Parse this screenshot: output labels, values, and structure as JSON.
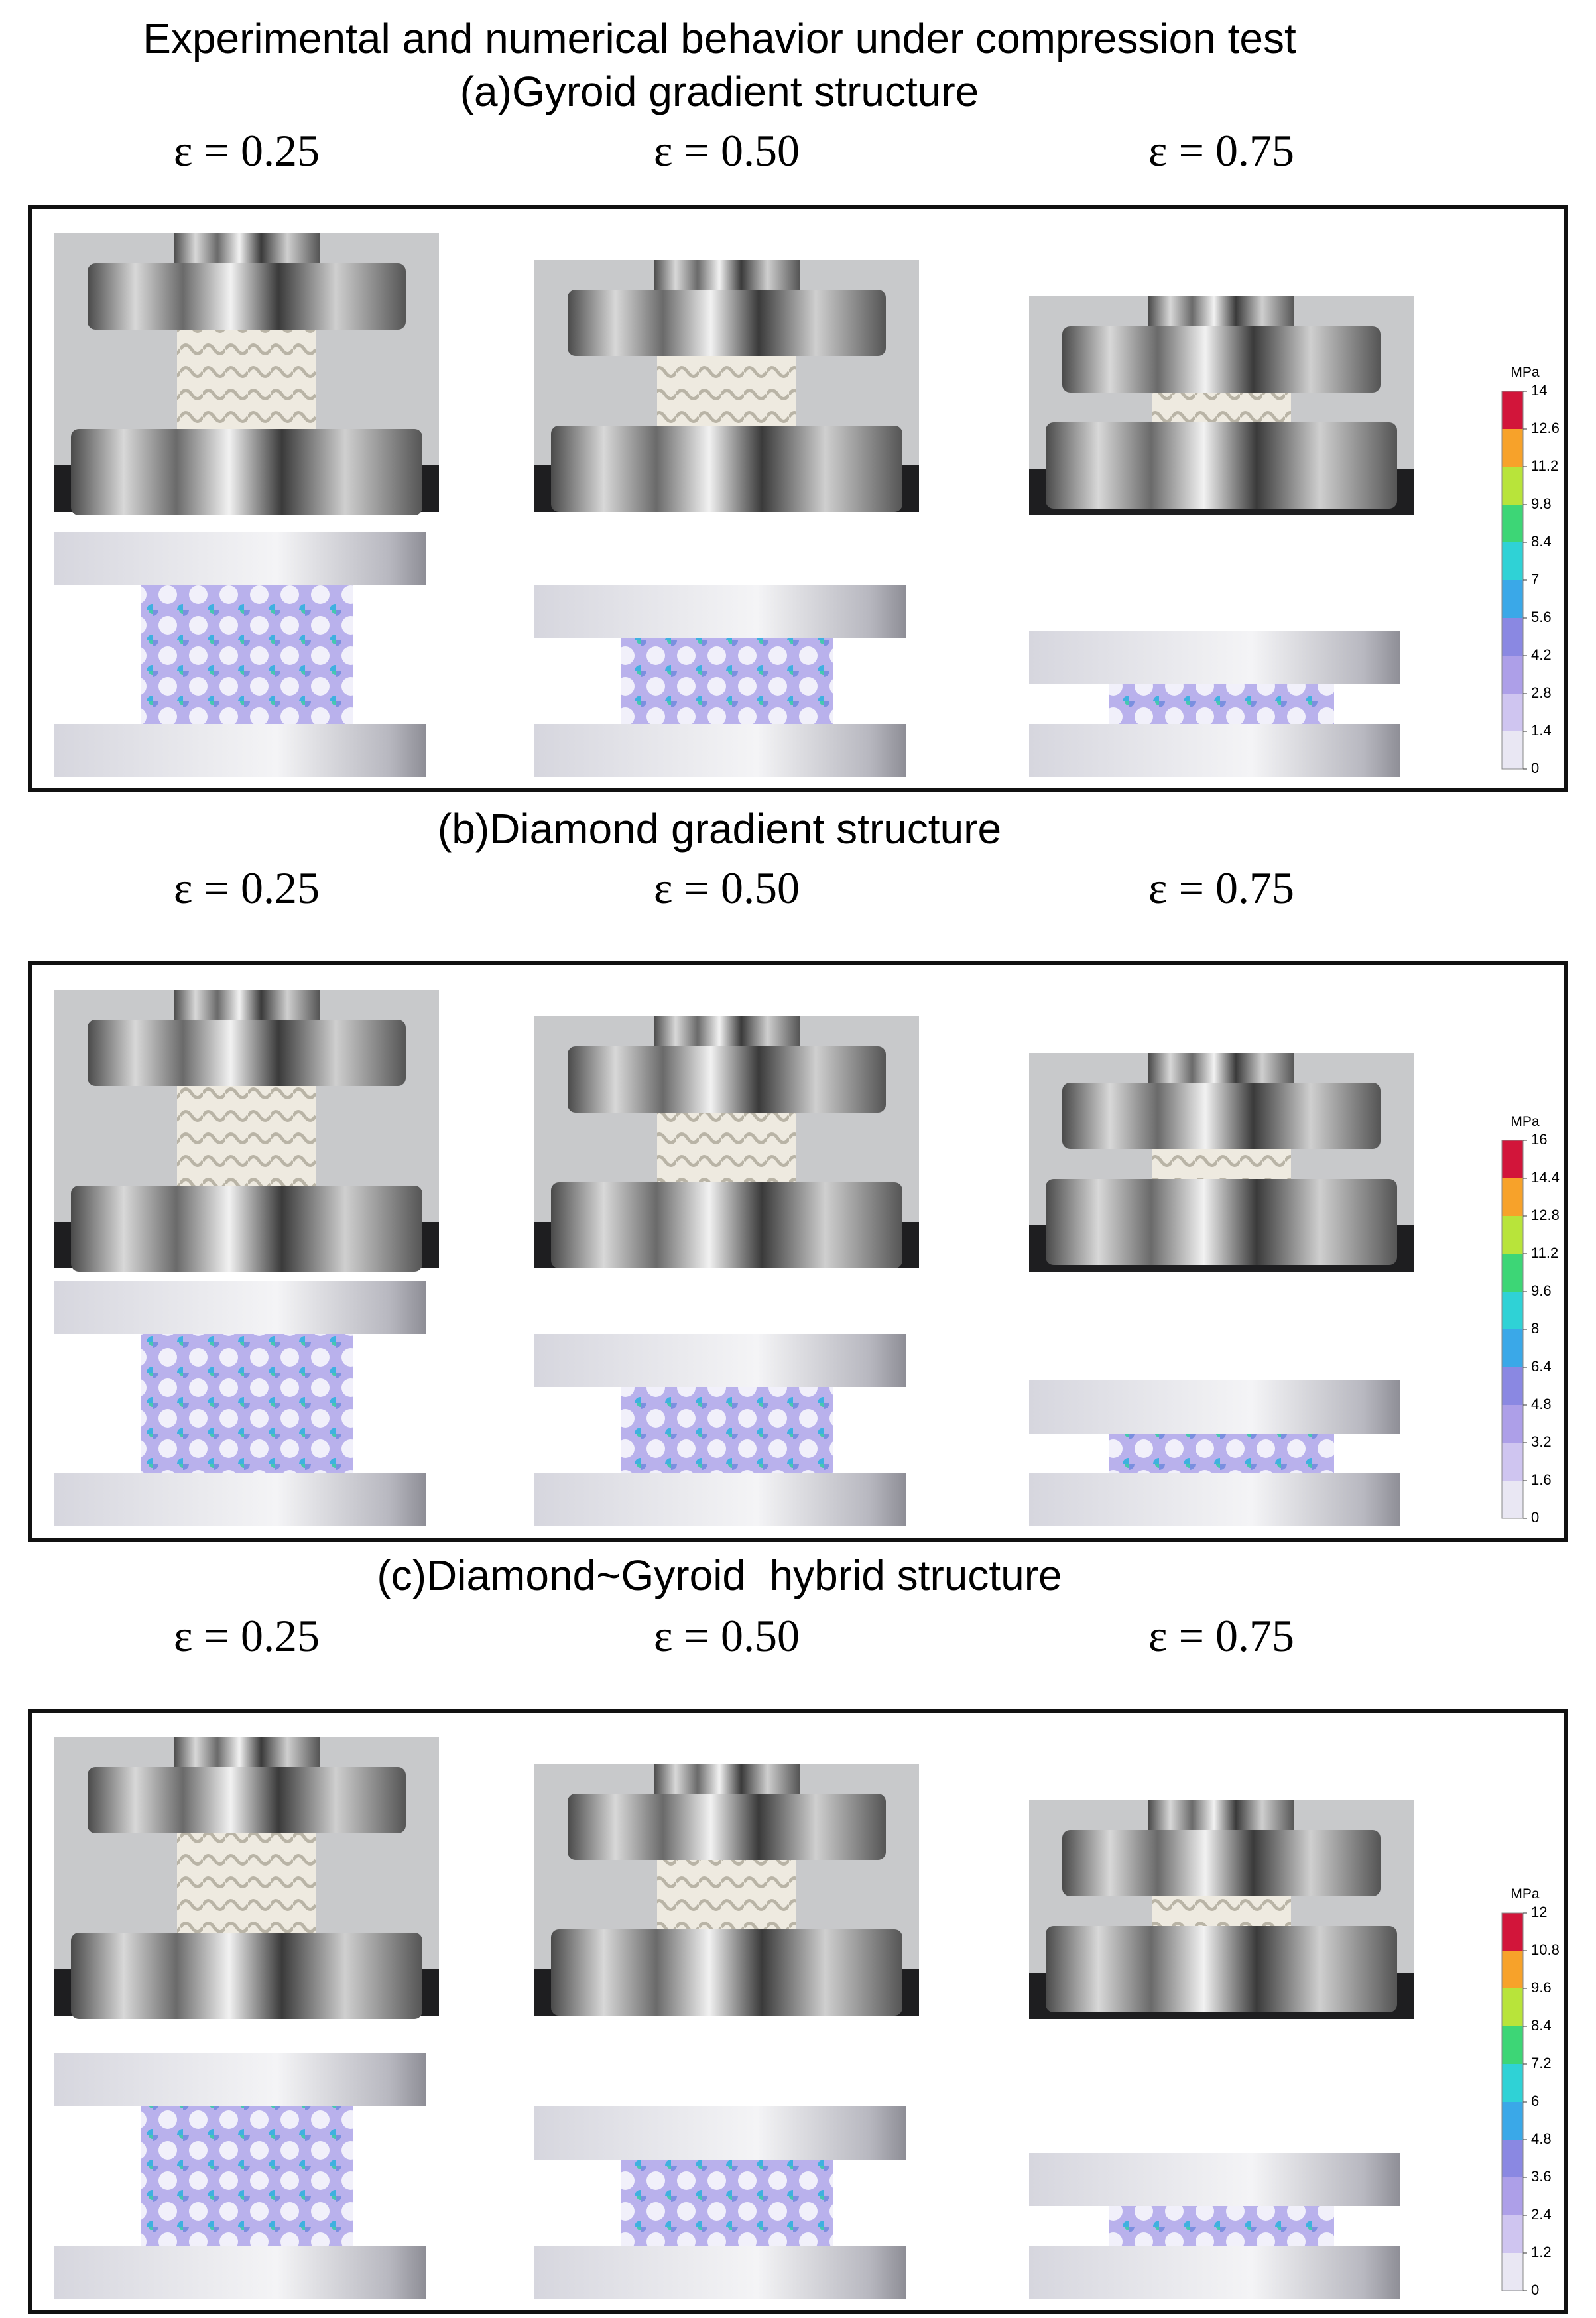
{
  "title": "Experimental and numerical behavior under compression test",
  "panels": [
    {
      "title": "(a)Gyroid gradient structure",
      "strains": [
        "ε = 0.25",
        "ε = 0.50",
        "ε = 0.75"
      ],
      "colorbar": {
        "unit": "MPa",
        "ticks": [
          0,
          1.4,
          2.8,
          4.2,
          5.6,
          7,
          8.4,
          9.8,
          11.2,
          12.6,
          14
        ]
      }
    },
    {
      "title": "(b)Diamond gradient structure",
      "strains": [
        "ε = 0.25",
        "ε = 0.50",
        "ε = 0.75"
      ],
      "colorbar": {
        "unit": "MPa",
        "ticks": [
          0,
          1.6,
          3.2,
          4.8,
          6.4,
          8,
          9.6,
          11.2,
          12.8,
          14.4,
          16
        ]
      }
    },
    {
      "title": "(c)Diamond~Gyroid  hybrid structure",
      "strains": [
        "ε = 0.25",
        "ε = 0.50",
        "ε = 0.75"
      ],
      "colorbar": {
        "unit": "MPa",
        "ticks": [
          0,
          1.2,
          2.4,
          3.6,
          4.8,
          6,
          7.2,
          8.4,
          9.6,
          10.8,
          12
        ]
      }
    }
  ]
}
